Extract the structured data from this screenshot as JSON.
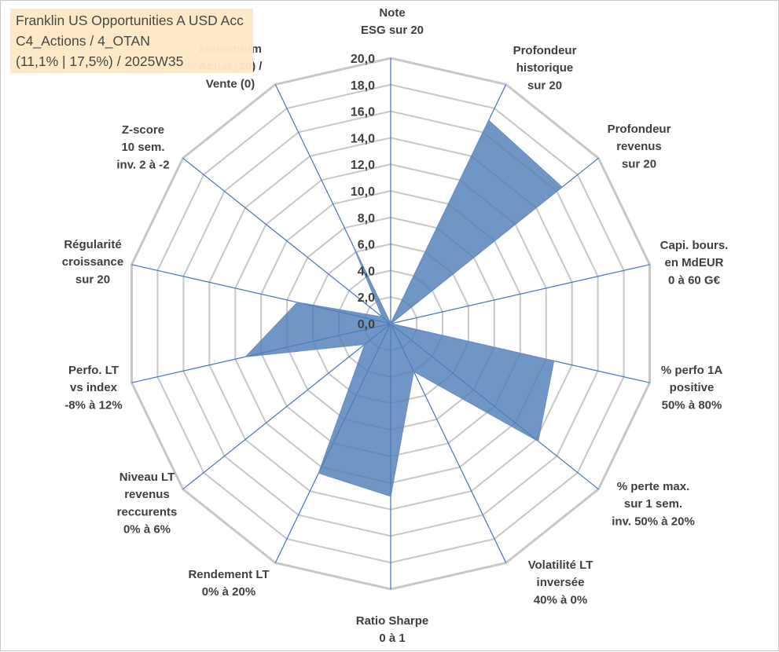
{
  "title_box": {
    "line1": "Franklin US Opportunities A USD Acc",
    "line2": "C4_Actions / 4_OTAN",
    "line3": "(11,1% | 17,5%) / 2025W35"
  },
  "chart_data": {
    "type": "radar",
    "rlim": [
      0,
      20
    ],
    "tick_step": 2,
    "tick_labels": [
      "0,0",
      "2,0",
      "4,0",
      "6,0",
      "8,0",
      "10,0",
      "12,0",
      "14,0",
      "16,0",
      "18,0",
      "20,0"
    ],
    "grid": true,
    "axes": [
      {
        "label": [
          "Note",
          "ESG sur 20"
        ],
        "value": 0
      },
      {
        "label": [
          "Profondeur",
          "historique",
          "sur 20"
        ],
        "value": 17
      },
      {
        "label": [
          "Profondeur",
          "revenus",
          "sur 20"
        ],
        "value": 16.5
      },
      {
        "label": [
          "Capi. bours.",
          "en MdEUR",
          "0 à 60 G€"
        ],
        "value": 0
      },
      {
        "label": [
          "% perfo 1A",
          "positive",
          "50% à 80%"
        ],
        "value": 12.6
      },
      {
        "label": [
          "% perte max.",
          "sur 1 sem.",
          "inv. 50% à 20%"
        ],
        "value": 14.2
      },
      {
        "label": [
          "Volatilité LT",
          "inversée",
          "40% à 0%"
        ],
        "value": 4
      },
      {
        "label": [
          "Ratio Sharpe",
          "0 à 1"
        ],
        "value": 13
      },
      {
        "label": [
          "Rendement LT",
          "0% à 20%"
        ],
        "value": 12.5
      },
      {
        "label": [
          "Niveau LT",
          "revenus",
          "reccurents",
          "0% à 6%"
        ],
        "value": 2.5
      },
      {
        "label": [
          "Perfo. LT",
          "vs index",
          "-8% à 12%"
        ],
        "value": 11.2
      },
      {
        "label": [
          "Régularité",
          "croissance",
          "sur 20"
        ],
        "value": 7.2
      },
      {
        "label": [
          "Z-score",
          "10 sem.",
          "inv. 2 à -2"
        ],
        "value": 0.8
      },
      {
        "label": [
          "Momentum",
          "Achat (20) /",
          "Vente (0)"
        ],
        "value": 6.5
      }
    ],
    "series_color": "#4f7fb7",
    "grid_color": "#c7c7c7",
    "spoke_color": "#4472c4"
  }
}
